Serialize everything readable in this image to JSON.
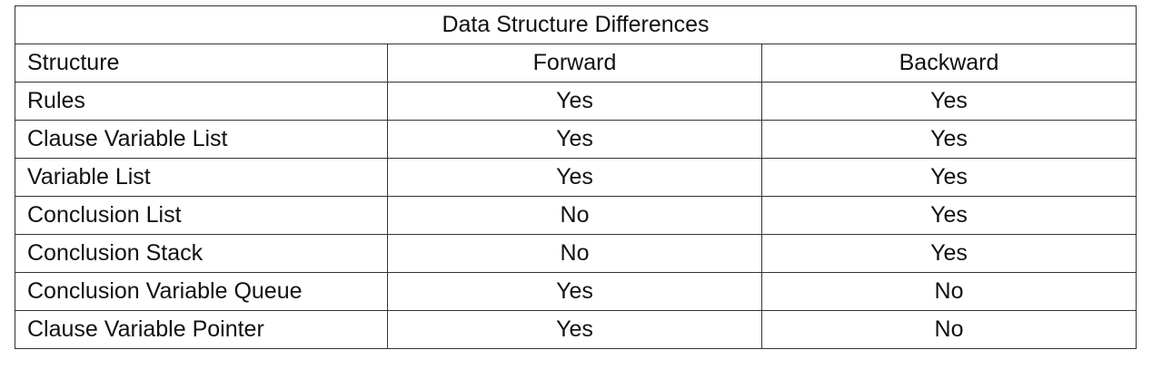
{
  "table": {
    "title": "Data Structure Differences",
    "headers": [
      "Structure",
      "Forward",
      "Backward"
    ],
    "rows": [
      [
        "Rules",
        "Yes",
        "Yes"
      ],
      [
        "Clause Variable List",
        "Yes",
        "Yes"
      ],
      [
        "Variable List",
        "Yes",
        "Yes"
      ],
      [
        "Conclusion List",
        "No",
        "Yes"
      ],
      [
        "Conclusion Stack",
        "No",
        "Yes"
      ],
      [
        "Conclusion Variable Queue",
        "Yes",
        "No"
      ],
      [
        "Clause Variable Pointer",
        "Yes",
        "No"
      ]
    ]
  }
}
